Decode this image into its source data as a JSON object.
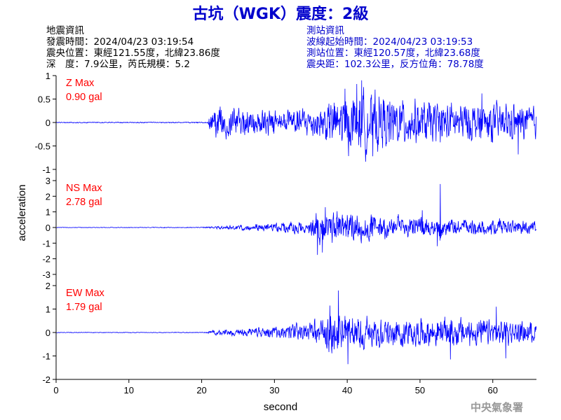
{
  "page": {
    "title": "古坑（WGK）震度：2級",
    "quake_info": {
      "heading": "地震資訊",
      "origin_time": "發震時間：2024/04/23 03:19:54",
      "epicenter": "震央位置：東經121.55度，北緯23.86度",
      "depth_mag": "深　度：7.9公里，芮氏規模：5.2"
    },
    "station_info": {
      "heading": "測站資訊",
      "wave_start": "波線起始時間：2024/04/23 03:19:53",
      "station_pos": "測站位置：東經120.57度，北緯23.68度",
      "distance": "震央距：102.3公里，反方位角：78.78度"
    },
    "credit": "中央氣象署",
    "colors": {
      "title": "#0000cc",
      "info_left": "#000000",
      "info_right": "#0000cc",
      "trace": "#0000ff",
      "max_label": "#ff0000",
      "axis": "#000000",
      "credit": "#999999"
    }
  },
  "chart_data": {
    "type": "line",
    "xlabel": "second",
    "ylabel": "acceleration",
    "xlim": [
      0,
      66
    ],
    "xticks": [
      0,
      10,
      20,
      30,
      40,
      50,
      60
    ],
    "panels": [
      {
        "name": "Z",
        "max_title": "Z Max",
        "max_value": "0.90 gal",
        "ylim": [
          -1,
          1
        ],
        "yticks": [
          -1,
          -0.5,
          0,
          0.5,
          1
        ],
        "ytick_labels": [
          "-1",
          "-0.5",
          "0",
          "0.5",
          "1"
        ],
        "envelope": [
          [
            0,
            0.012
          ],
          [
            20.8,
            0.012
          ],
          [
            21.2,
            0.25
          ],
          [
            22,
            0.42
          ],
          [
            25,
            0.35
          ],
          [
            30,
            0.3
          ],
          [
            33,
            0.32
          ],
          [
            36,
            0.4
          ],
          [
            38,
            0.55
          ],
          [
            41,
            0.7
          ],
          [
            43,
            0.75
          ],
          [
            46,
            0.6
          ],
          [
            50,
            0.5
          ],
          [
            55,
            0.48
          ],
          [
            60,
            0.45
          ],
          [
            66,
            0.4
          ]
        ],
        "peaks": [
          [
            42.0,
            0.9
          ],
          [
            43.5,
            -0.72
          ],
          [
            41.3,
            0.82
          ],
          [
            63.5,
            -0.68
          ],
          [
            58.5,
            0.62
          ],
          [
            39.7,
            0.72
          ]
        ]
      },
      {
        "name": "NS",
        "max_title": "NS Max",
        "max_value": "2.78 gal",
        "ylim": [
          -3,
          3
        ],
        "yticks": [
          -3,
          -2,
          -1,
          0,
          1,
          2,
          3
        ],
        "ytick_labels": [
          "-3",
          "-2",
          "-1",
          "0",
          "1",
          "2",
          "3"
        ],
        "envelope": [
          [
            0,
            0.02
          ],
          [
            20,
            0.03
          ],
          [
            22,
            0.1
          ],
          [
            27,
            0.22
          ],
          [
            30,
            0.35
          ],
          [
            33,
            0.5
          ],
          [
            35.2,
            0.6
          ],
          [
            36,
            1.15
          ],
          [
            40,
            1.05
          ],
          [
            45,
            0.85
          ],
          [
            50,
            0.7
          ],
          [
            55,
            0.6
          ],
          [
            60,
            0.55
          ],
          [
            66,
            0.5
          ]
        ],
        "peaks": [
          [
            52.8,
            2.78
          ],
          [
            35.9,
            -1.75
          ],
          [
            52.4,
            -1.2
          ],
          [
            37.0,
            1.3
          ],
          [
            50.3,
            1.1
          ],
          [
            36.6,
            -1.6
          ]
        ]
      },
      {
        "name": "EW",
        "max_title": "EW Max",
        "max_value": "1.79 gal",
        "ylim": [
          -2,
          2
        ],
        "yticks": [
          -2,
          -1,
          0,
          1,
          2
        ],
        "ytick_labels": [
          "-2",
          "-1",
          "0",
          "1",
          "2"
        ],
        "envelope": [
          [
            0,
            0.015
          ],
          [
            20.5,
            0.02
          ],
          [
            22,
            0.12
          ],
          [
            25,
            0.2
          ],
          [
            30,
            0.28
          ],
          [
            34,
            0.45
          ],
          [
            36,
            0.65
          ],
          [
            38,
            0.95
          ],
          [
            41,
            0.85
          ],
          [
            45,
            0.7
          ],
          [
            50,
            0.65
          ],
          [
            55,
            0.7
          ],
          [
            60,
            0.6
          ],
          [
            66,
            0.5
          ]
        ],
        "peaks": [
          [
            38.8,
            1.79
          ],
          [
            40.1,
            -1.35
          ],
          [
            37.6,
            1.15
          ],
          [
            54.2,
            -1.15
          ],
          [
            60.5,
            1.1
          ],
          [
            61.8,
            -1.1
          ]
        ]
      }
    ]
  }
}
